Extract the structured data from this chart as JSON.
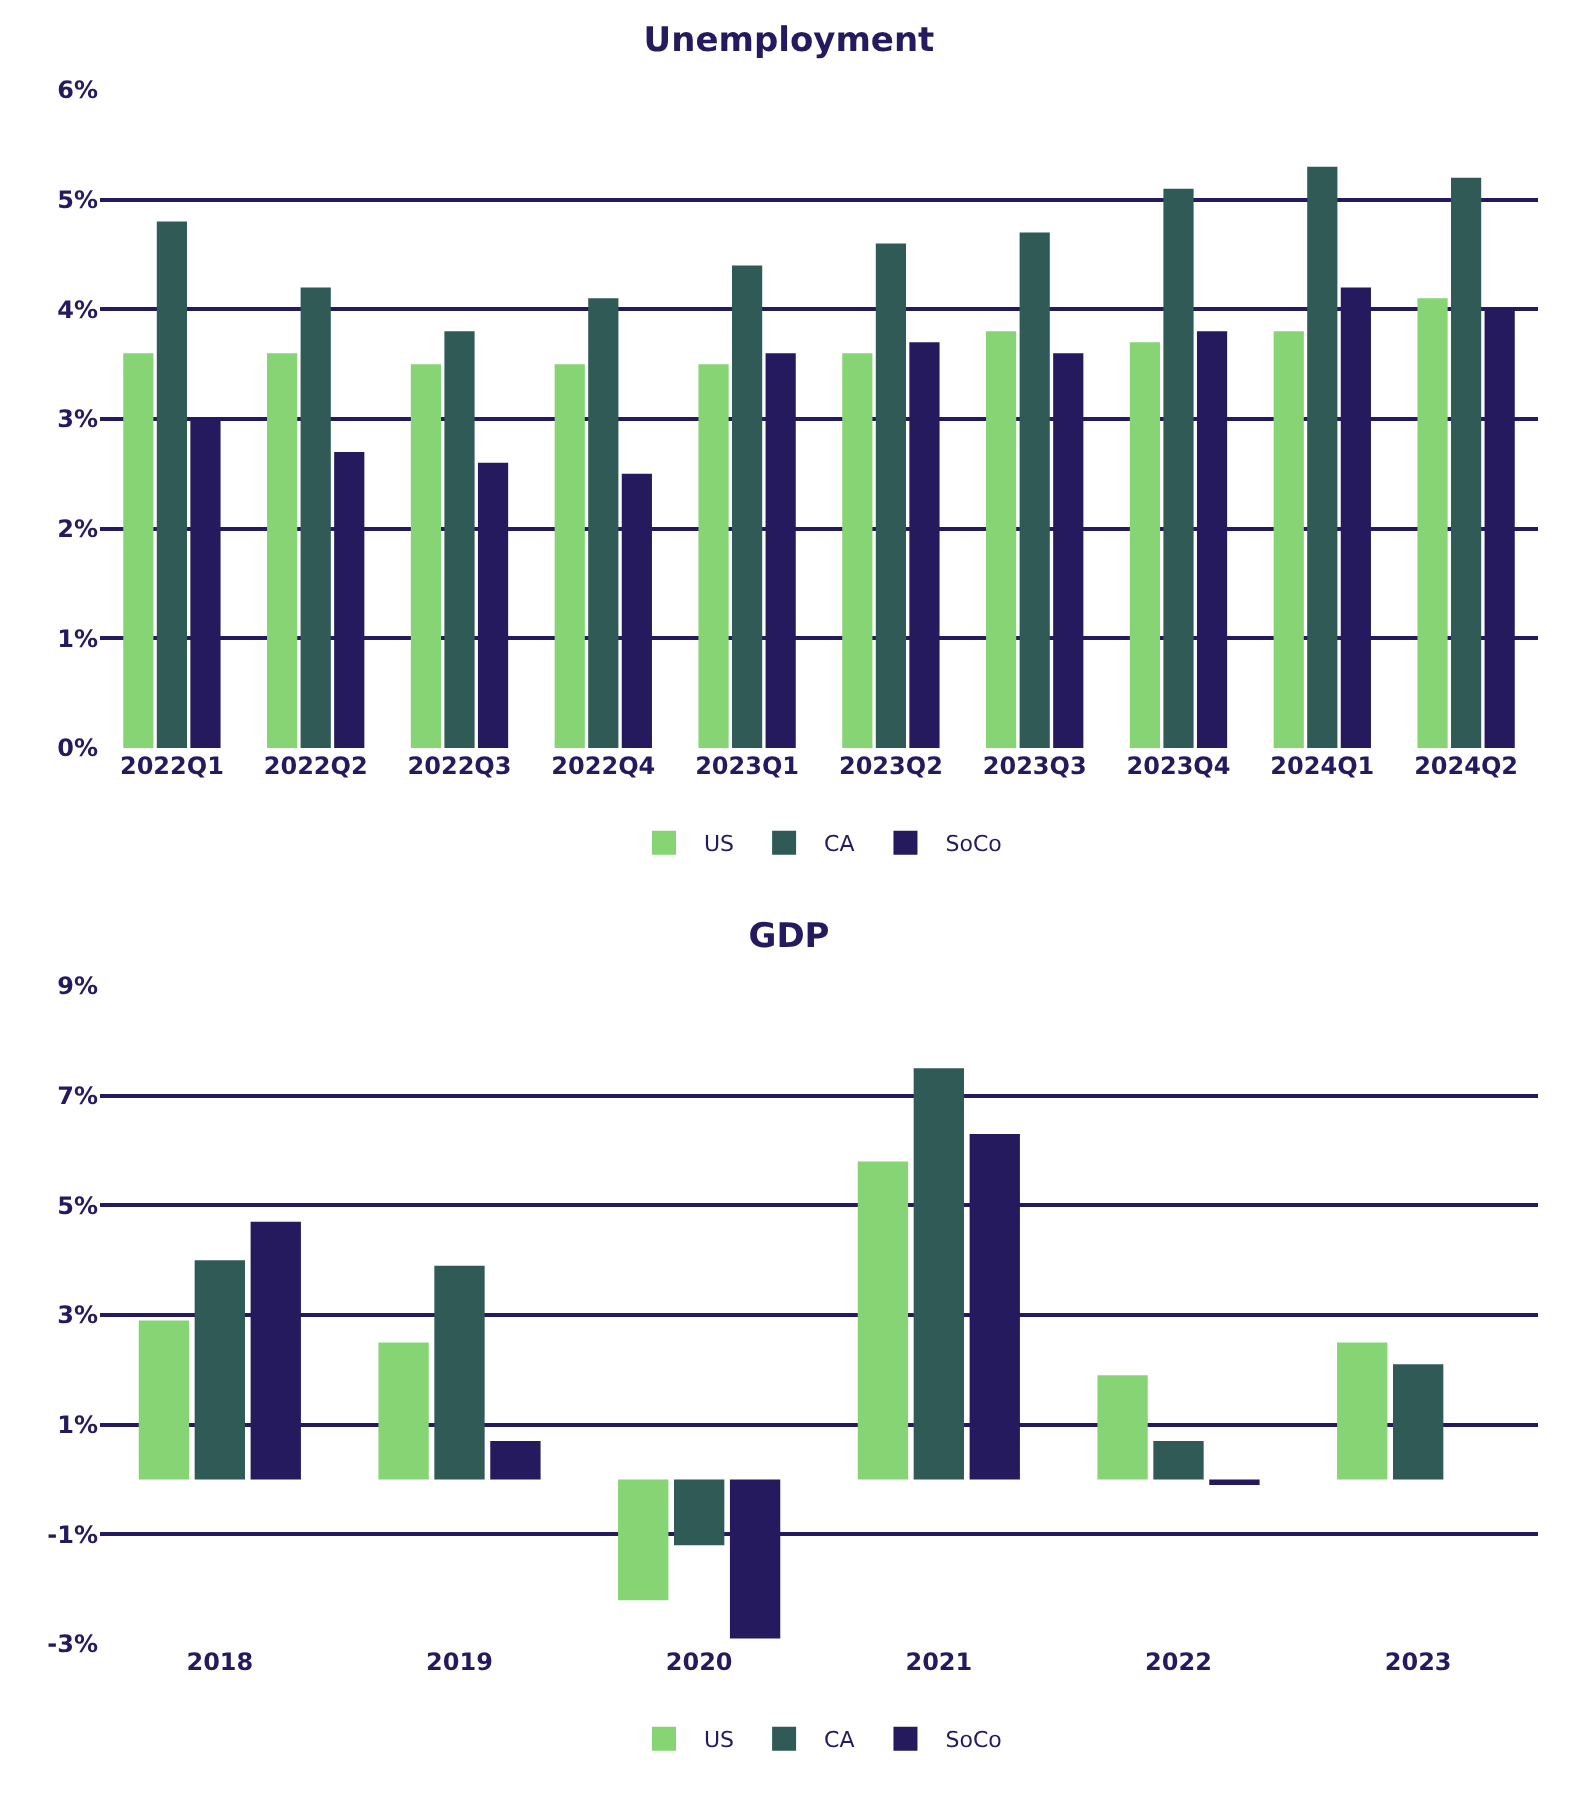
{
  "chart_data": [
    {
      "type": "bar",
      "title": "Unemployment",
      "categories": [
        "2022Q1",
        "2022Q2",
        "2022Q3",
        "2022Q4",
        "2023Q1",
        "2023Q2",
        "2023Q3",
        "2023Q4",
        "2024Q1",
        "2024Q2"
      ],
      "series": [
        {
          "name": "US",
          "color": "#86d474",
          "values": [
            3.6,
            3.6,
            3.5,
            3.5,
            3.5,
            3.6,
            3.8,
            3.7,
            3.8,
            4.1
          ]
        },
        {
          "name": "CA",
          "color": "#2f5a55",
          "values": [
            4.8,
            4.2,
            3.8,
            4.1,
            4.4,
            4.6,
            4.7,
            5.1,
            5.3,
            5.2
          ]
        },
        {
          "name": "SoCo",
          "color": "#261a5e",
          "values": [
            3.0,
            2.7,
            2.6,
            2.5,
            3.6,
            3.7,
            3.6,
            3.8,
            4.2,
            4.0
          ]
        }
      ],
      "ylim": [
        0,
        6
      ],
      "yticks": [
        {
          "value": 0,
          "label": "0%"
        },
        {
          "value": 1,
          "label": "1%"
        },
        {
          "value": 2,
          "label": "2%"
        },
        {
          "value": 3,
          "label": "3%"
        },
        {
          "value": 4,
          "label": "4%"
        },
        {
          "value": 5,
          "label": "5%"
        },
        {
          "value": 6,
          "label": "6%"
        }
      ],
      "grid": "y",
      "legend": "bottom"
    },
    {
      "type": "bar",
      "title": "GDP",
      "categories": [
        "2018",
        "2019",
        "2020",
        "2021",
        "2022",
        "2023"
      ],
      "series": [
        {
          "name": "US",
          "color": "#86d474",
          "values": [
            2.9,
            2.5,
            -2.2,
            5.8,
            1.9,
            2.5
          ]
        },
        {
          "name": "CA",
          "color": "#2f5a55",
          "values": [
            4.0,
            3.9,
            -1.2,
            7.5,
            0.7,
            2.1
          ]
        },
        {
          "name": "SoCo",
          "color": "#261a5e",
          "values": [
            4.7,
            0.7,
            -2.9,
            6.3,
            -0.1,
            null
          ]
        }
      ],
      "ylim": [
        -3,
        9
      ],
      "yticks": [
        {
          "value": -3,
          "label": "-3%"
        },
        {
          "value": -1,
          "label": "-1%"
        },
        {
          "value": 1,
          "label": "1%"
        },
        {
          "value": 3,
          "label": "3%"
        },
        {
          "value": 5,
          "label": "5%"
        },
        {
          "value": 7,
          "label": "7%"
        },
        {
          "value": 9,
          "label": "9%"
        }
      ],
      "grid": "y",
      "legend": "bottom"
    }
  ]
}
